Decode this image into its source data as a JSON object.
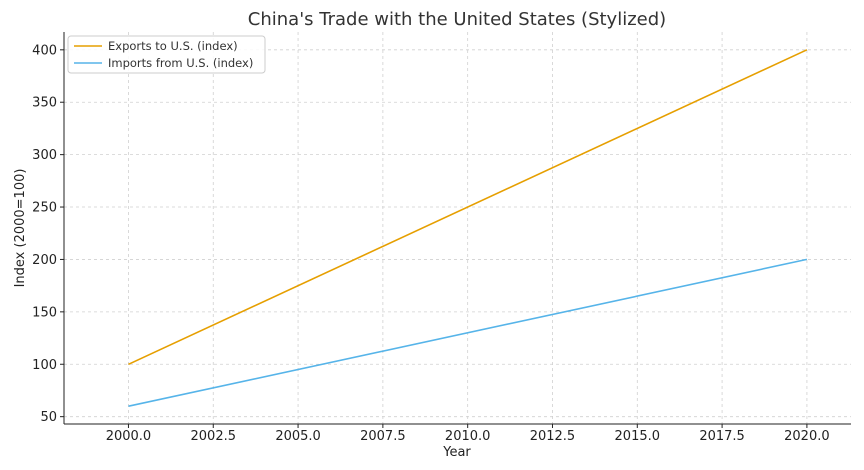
{
  "chart_data": {
    "type": "line",
    "title": "China's Trade with the United States (Stylized)",
    "xlabel": "Year",
    "ylabel": "Index (2000=100)",
    "xlim": [
      1998.1,
      2021.3
    ],
    "ylim": [
      43,
      417
    ],
    "x_ticks": [
      2000.0,
      2002.5,
      2005.0,
      2007.5,
      2010.0,
      2012.5,
      2015.0,
      2017.5,
      2020.0
    ],
    "x_tick_labels": [
      "2000.0",
      "2002.5",
      "2005.0",
      "2007.5",
      "2010.0",
      "2012.5",
      "2015.0",
      "2017.5",
      "2020.0"
    ],
    "y_ticks": [
      50,
      100,
      150,
      200,
      250,
      300,
      350,
      400
    ],
    "y_tick_labels": [
      "50",
      "100",
      "150",
      "200",
      "250",
      "300",
      "350",
      "400"
    ],
    "grid": true,
    "legend_position": "top-left",
    "series": [
      {
        "name": "Exports to U.S. (index)",
        "color": "#E69F00",
        "x": [
          2000,
          2020
        ],
        "values": [
          100,
          400
        ]
      },
      {
        "name": "Imports from U.S. (index)",
        "color": "#56B4E9",
        "x": [
          2000,
          2020
        ],
        "values": [
          60,
          200
        ]
      }
    ]
  }
}
